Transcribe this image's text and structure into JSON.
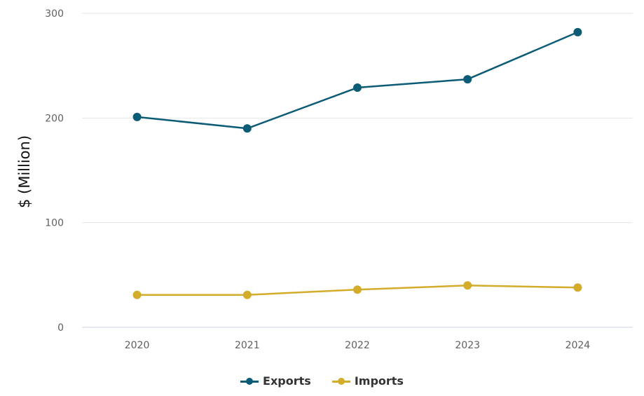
{
  "chart_data": {
    "type": "line",
    "title": "",
    "xlabel": "",
    "ylabel": "$ (Million)",
    "categories": [
      "2020",
      "2021",
      "2022",
      "2023",
      "2024"
    ],
    "ylim": [
      0,
      300
    ],
    "yticks": [
      "0",
      "100",
      "200",
      "300"
    ],
    "grid": true,
    "legend_position": "bottom",
    "series": [
      {
        "name": "Exports",
        "color": "#0d5c75",
        "values": [
          201,
          190,
          229,
          237,
          282
        ]
      },
      {
        "name": "Imports",
        "color": "#d4ac2b",
        "values": [
          31,
          31,
          36,
          40,
          38
        ]
      }
    ]
  }
}
